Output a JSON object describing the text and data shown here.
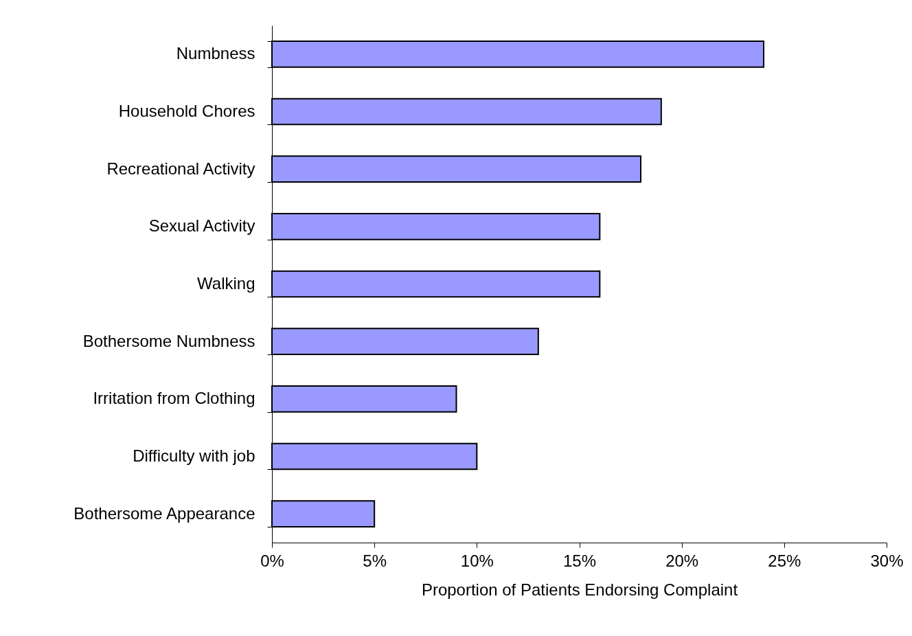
{
  "chart_data": {
    "type": "bar",
    "orientation": "horizontal",
    "xlabel": "Proportion of Patients Endorsing Complaint",
    "categories": [
      "Numbness",
      "Household Chores",
      "Recreational Activity",
      "Sexual Activity",
      "Walking",
      "Bothersome Numbness",
      "Irritation from Clothing",
      "Difficulty with job",
      "Bothersome Appearance"
    ],
    "values": [
      24,
      19,
      18,
      16,
      16,
      13,
      9,
      10,
      5
    ],
    "color": "#9999ff",
    "xlim": [
      0,
      30
    ],
    "xticks": [
      {
        "value": 0,
        "label": "0%"
      },
      {
        "value": 5,
        "label": "5%"
      },
      {
        "value": 10,
        "label": "10%"
      },
      {
        "value": 15,
        "label": "15%"
      },
      {
        "value": 20,
        "label": "20%"
      },
      {
        "value": 25,
        "label": "25%"
      },
      {
        "value": 30,
        "label": "30%"
      }
    ],
    "grid": false
  }
}
